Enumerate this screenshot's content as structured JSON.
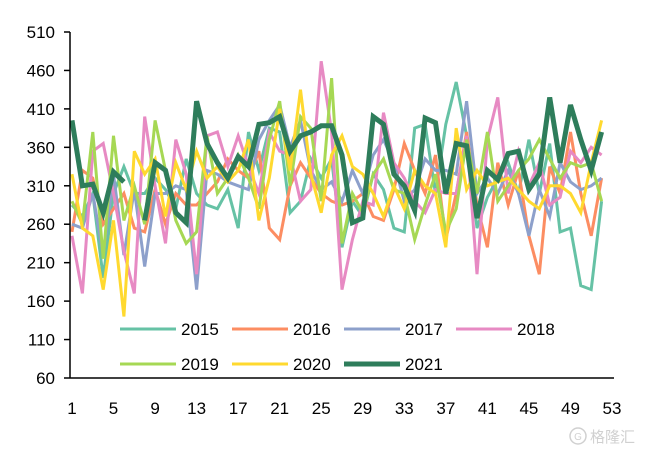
{
  "chart_data": {
    "type": "line",
    "title": "",
    "xlabel": "",
    "ylabel": "",
    "xlim": [
      1,
      53
    ],
    "ylim": [
      60,
      510
    ],
    "xticks": [
      1,
      5,
      9,
      13,
      17,
      21,
      25,
      29,
      33,
      37,
      41,
      45,
      49,
      53
    ],
    "yticks": [
      60,
      110,
      160,
      210,
      260,
      310,
      360,
      410,
      460,
      510
    ],
    "grid": false,
    "legend_position": "bottom-inside",
    "x": [
      1,
      2,
      3,
      4,
      5,
      6,
      7,
      8,
      9,
      10,
      11,
      12,
      13,
      14,
      15,
      16,
      17,
      18,
      19,
      20,
      21,
      22,
      23,
      24,
      25,
      26,
      27,
      28,
      29,
      30,
      31,
      32,
      33,
      34,
      35,
      36,
      37,
      38,
      39,
      40,
      41,
      42,
      43,
      44,
      45,
      46,
      47,
      48,
      49,
      50,
      51,
      52
    ],
    "series": [
      {
        "name": "2015",
        "color": "#66c2a5",
        "width": 3,
        "values": [
          285,
          270,
          300,
          190,
          300,
          335,
          300,
          300,
          320,
          305,
          280,
          345,
          300,
          285,
          280,
          305,
          255,
          380,
          330,
          385,
          380,
          275,
          290,
          345,
          320,
          345,
          230,
          290,
          270,
          325,
          305,
          255,
          250,
          385,
          390,
          300,
          390,
          445,
          375,
          255,
          295,
          320,
          340,
          300,
          370,
          300,
          365,
          250,
          255,
          180,
          175,
          290
        ]
      },
      {
        "name": "2016",
        "color": "#fc8d62",
        "width": 3,
        "values": [
          250,
          330,
          320,
          260,
          280,
          300,
          255,
          250,
          305,
          260,
          300,
          285,
          285,
          300,
          315,
          345,
          330,
          320,
          355,
          255,
          240,
          310,
          340,
          320,
          300,
          290,
          285,
          290,
          300,
          270,
          265,
          305,
          365,
          330,
          300,
          350,
          240,
          300,
          380,
          285,
          230,
          340,
          285,
          330,
          245,
          195,
          335,
          300,
          380,
          300,
          245,
          320
        ]
      },
      {
        "name": "2017",
        "color": "#8da0cb",
        "width": 3,
        "values": [
          260,
          255,
          300,
          220,
          325,
          220,
          305,
          205,
          300,
          300,
          310,
          305,
          175,
          330,
          325,
          315,
          310,
          305,
          370,
          395,
          415,
          360,
          395,
          330,
          305,
          315,
          290,
          330,
          300,
          350,
          370,
          340,
          290,
          305,
          345,
          330,
          330,
          325,
          420,
          300,
          320,
          300,
          330,
          300,
          245,
          305,
          270,
          340,
          315,
          305,
          310,
          320
        ]
      },
      {
        "name": "2018",
        "color": "#e78ac3",
        "width": 3,
        "values": [
          245,
          170,
          355,
          365,
          300,
          225,
          170,
          400,
          310,
          235,
          370,
          325,
          195,
          375,
          380,
          335,
          375,
          335,
          300,
          380,
          355,
          350,
          290,
          305,
          472,
          380,
          175,
          240,
          290,
          285,
          405,
          340,
          320,
          290,
          275,
          305,
          300,
          300,
          375,
          195,
          370,
          425,
          300,
          355,
          310,
          340,
          285,
          295,
          355,
          340,
          360,
          350
        ]
      },
      {
        "name": "2019",
        "color": "#a6d854",
        "width": 3,
        "values": [
          290,
          260,
          380,
          215,
          375,
          265,
          310,
          260,
          395,
          330,
          265,
          235,
          250,
          375,
          300,
          320,
          350,
          320,
          280,
          370,
          420,
          310,
          400,
          385,
          290,
          450,
          235,
          300,
          275,
          325,
          345,
          305,
          300,
          240,
          285,
          325,
          250,
          280,
          370,
          300,
          380,
          290,
          310,
          330,
          345,
          370,
          345,
          320,
          340,
          335,
          340,
          290
        ]
      },
      {
        "name": "2020",
        "color": "#ffd92f",
        "width": 3,
        "values": [
          325,
          255,
          245,
          175,
          265,
          140,
          355,
          325,
          345,
          270,
          340,
          305,
          355,
          320,
          335,
          315,
          330,
          370,
          265,
          320,
          410,
          330,
          435,
          325,
          275,
          350,
          375,
          335,
          325,
          300,
          270,
          310,
          280,
          330,
          310,
          300,
          230,
          385,
          305,
          330,
          310,
          315,
          320,
          305,
          290,
          280,
          310,
          310,
          300,
          275,
          340,
          395
        ]
      },
      {
        "name": "2021",
        "color": "#2e7d5b",
        "width": 5,
        "values": [
          395,
          310,
          312,
          275,
          328,
          315,
          null,
          265,
          340,
          330,
          275,
          262,
          420,
          365,
          340,
          320,
          348,
          335,
          390,
          392,
          400,
          355,
          375,
          380,
          388,
          388,
          350,
          262,
          268,
          400,
          390,
          325,
          310,
          278,
          398,
          392,
          300,
          365,
          362,
          268,
          330,
          318,
          352,
          355,
          305,
          325,
          425,
          340,
          415,
          370,
          330,
          380
        ]
      }
    ]
  },
  "watermark": {
    "text": "格隆汇"
  }
}
